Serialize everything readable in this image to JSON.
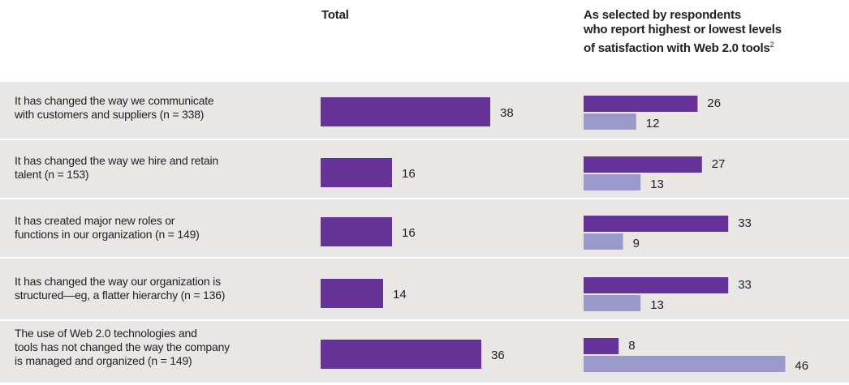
{
  "header": {
    "total": "Total",
    "selected_lines": [
      "As selected by respondents",
      "who report highest or lowest levels",
      "of satisfaction with Web 2.0 tools"
    ],
    "selected_footnote": "2"
  },
  "colors": {
    "primary": "#663399",
    "secondary": "#9999cc",
    "band": "#e8e7e5"
  },
  "chart_data": {
    "type": "bar",
    "orientation": "horizontal",
    "categories": [
      "It has changed the way we communicate with customers and suppliers (n = 338)",
      "It has changed the way we hire and retain talent (n = 153)",
      "It has created major new roles or functions in our organization (n = 149)",
      "It has changed the way our organization is structured—eg, a flatter hierarchy (n = 136)",
      "The use of Web 2.0 technologies and tools has not changed the way the company is managed and organized (n = 149)"
    ],
    "label_lines": [
      [
        "It has changed the way we communicate",
        "with customers and suppliers (n = 338)"
      ],
      [
        "It has changed the way we hire and retain",
        "talent (n = 153)"
      ],
      [
        "It has created major new roles or",
        "functions in our organization (n = 149)"
      ],
      [
        "It has changed the way our organization is",
        "structured—eg, a flatter hierarchy (n = 136)"
      ],
      [
        "The use of Web 2.0 technologies and",
        "tools has not changed the way the company",
        "is managed and organized (n = 149)"
      ]
    ],
    "total": [
      38,
      16,
      16,
      14,
      36
    ],
    "series": [
      {
        "values": [
          26,
          27,
          33,
          33,
          8
        ]
      },
      {
        "values": [
          12,
          13,
          9,
          13,
          46
        ]
      }
    ]
  }
}
